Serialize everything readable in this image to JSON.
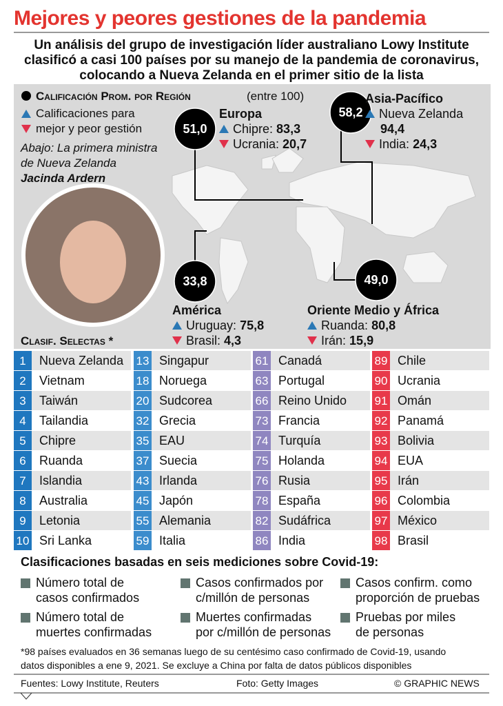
{
  "header": {
    "title": "Mejores y peores gestiones de la pandemia",
    "subtitle": [
      "Un análisis del grupo de investigación líder australiano Lowy Institute",
      "clasificó a casi 100 países por su manejo de la pandemia de coronavirus,",
      "colocando a Nueva Zelanda en el primer sitio de la lista"
    ]
  },
  "legend": {
    "average_heading": "Calificación Prom. por Región",
    "average_note": "(entre 100)",
    "best_worst": [
      "Calificaciones para",
      "mejor y peor gestión"
    ],
    "photo_caption": [
      "Abajo: La primera ministra",
      "de Nueva Zelanda"
    ],
    "photo_name": "Jacinda Ardern"
  },
  "regions": [
    {
      "name": "Europa",
      "average": "51,0",
      "best": {
        "country": "Chipre:",
        "score": "83,3"
      },
      "worst": {
        "country": "Ucrania:",
        "score": "20,7"
      }
    },
    {
      "name": "Asia-Pacífico",
      "average": "58,2",
      "best": {
        "country": "Nueva Zelanda",
        "score": "94,4"
      },
      "worst": {
        "country": "India:",
        "score": "24,3"
      }
    },
    {
      "name": "América",
      "average": "33,8",
      "best": {
        "country": "Uruguay:",
        "score": "75,8"
      },
      "worst": {
        "country": "Brasil:",
        "score": "4,3"
      }
    },
    {
      "name": "Oriente Medio y África",
      "average": "49,0",
      "best": {
        "country": "Ruanda:",
        "score": "80,8"
      },
      "worst": {
        "country": "Irán:",
        "score": "15,9"
      }
    }
  ],
  "rankings": {
    "heading": "Clasif. Selectas *",
    "columns": [
      [
        [
          1,
          "Nueva Zelanda"
        ],
        [
          2,
          "Vietnam"
        ],
        [
          3,
          "Taiwán"
        ],
        [
          4,
          "Tailandia"
        ],
        [
          5,
          "Chipre"
        ],
        [
          6,
          "Ruanda"
        ],
        [
          7,
          "Islandia"
        ],
        [
          8,
          "Australia"
        ],
        [
          9,
          "Letonia"
        ],
        [
          10,
          "Sri Lanka"
        ]
      ],
      [
        [
          13,
          "Singapur"
        ],
        [
          18,
          "Noruega"
        ],
        [
          20,
          "Sudcorea"
        ],
        [
          32,
          "Grecia"
        ],
        [
          35,
          "EAU"
        ],
        [
          37,
          "Suecia"
        ],
        [
          43,
          "Irlanda"
        ],
        [
          45,
          "Japón"
        ],
        [
          55,
          "Alemania"
        ],
        [
          59,
          "Italia"
        ]
      ],
      [
        [
          61,
          "Canadá"
        ],
        [
          63,
          "Portugal"
        ],
        [
          66,
          "Reino Unido"
        ],
        [
          73,
          "Francia"
        ],
        [
          74,
          "Turquía"
        ],
        [
          75,
          "Holanda"
        ],
        [
          76,
          "Rusia"
        ],
        [
          78,
          "España"
        ],
        [
          82,
          "Sudáfrica"
        ],
        [
          86,
          "India"
        ]
      ],
      [
        [
          89,
          "Chile"
        ],
        [
          90,
          "Ucrania"
        ],
        [
          91,
          "Omán"
        ],
        [
          92,
          "Panamá"
        ],
        [
          93,
          "Bolivia"
        ],
        [
          94,
          "EUA"
        ],
        [
          95,
          "Irán"
        ],
        [
          96,
          "Colombia"
        ],
        [
          97,
          "México"
        ],
        [
          98,
          "Brasil"
        ]
      ]
    ]
  },
  "criteria": {
    "heading": "Clasificaciones basadas en seis mediciones sobre Covid-19:",
    "items": [
      [
        "Número total de",
        "casos confirmados"
      ],
      [
        "Casos confirmados por",
        "c/millón de personas"
      ],
      [
        "Casos confirm. como",
        "proporción de pruebas"
      ],
      [
        "Número total de",
        "muertes confirmadas"
      ],
      [
        "Muertes confirmadas",
        "por c/millón de personas"
      ],
      [
        "Pruebas por miles",
        "de personas"
      ]
    ]
  },
  "footnote": [
    "*98 países evaluados en 36 semanas luego de su centésimo caso confirmado de Covid-19, usando",
    "datos disponibles a ene 9, 2021. Se excluye a China por falta de datos públicos disponibles"
  ],
  "footer": {
    "sources": "Fuentes: Lowy Institute, Reuters",
    "photo": "Foto: Getty Images",
    "credit": "© GRAPHIC NEWS"
  }
}
